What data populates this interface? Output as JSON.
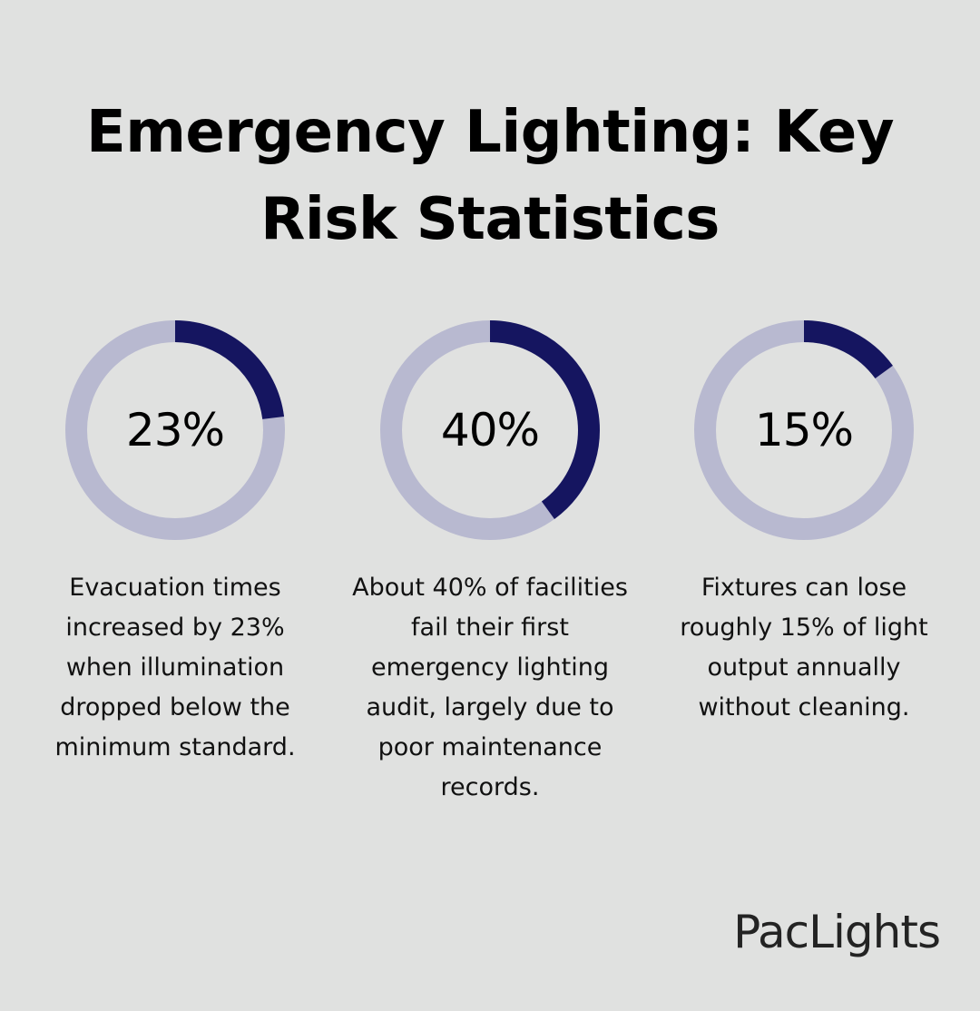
{
  "title": "Emergency Lighting: Key Risk Statistics",
  "colors": {
    "background": "#e0e1e0",
    "track": "#b8b9d0",
    "accent": "#151560"
  },
  "chart_data": [
    {
      "type": "pie",
      "label": "23%",
      "values": [
        23,
        77
      ],
      "description": "Evacuation times increased by 23% when illumination dropped below the minimum standard."
    },
    {
      "type": "pie",
      "label": "40%",
      "values": [
        40,
        60
      ],
      "description": "About 40% of facilities fail their first emergency lighting audit, largely due to poor maintenance records."
    },
    {
      "type": "pie",
      "label": "15%",
      "values": [
        15,
        85
      ],
      "description": "Fixtures can lose roughly 15% of light output annually without cleaning."
    }
  ],
  "brand": "PacLights"
}
